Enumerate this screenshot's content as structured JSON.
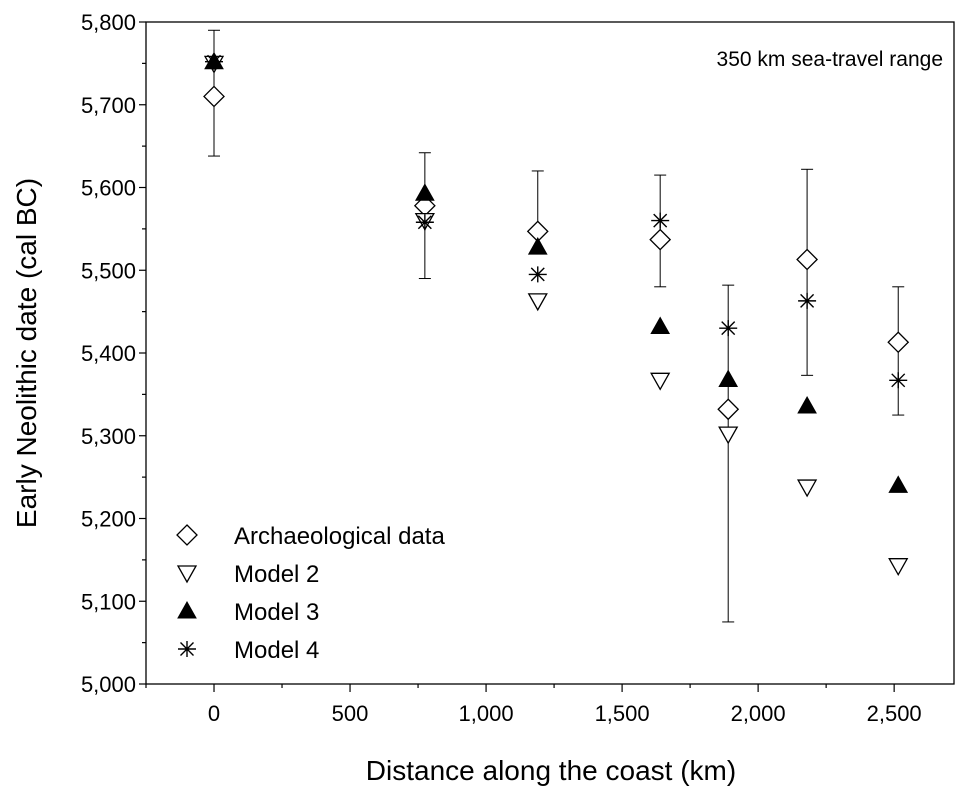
{
  "chart_data": {
    "type": "scatter",
    "title": "",
    "annotation": "350 km sea-travel range",
    "xlabel": "Distance along the coast (km)",
    "ylabel": "Early Neolithic date (cal BC)",
    "xlim": [
      -250,
      2720
    ],
    "ylim": [
      5000,
      5800
    ],
    "xticks": [
      0,
      500,
      1000,
      1500,
      2000,
      2500
    ],
    "xtick_labels": [
      "0",
      "500",
      "1,000",
      "1,500",
      "2,000",
      "2,500"
    ],
    "yticks": [
      5000,
      5100,
      5200,
      5300,
      5400,
      5500,
      5600,
      5700,
      5800
    ],
    "ytick_labels": [
      "5,000",
      "5,100",
      "5,200",
      "5,300",
      "5,400",
      "5,500",
      "5,600",
      "5,700",
      "5,800"
    ],
    "grid": false,
    "legend_position": "bottom-left",
    "series": [
      {
        "name": "Archaeological data",
        "marker": "diamond-open",
        "x": [
          0,
          775,
          1190,
          1640,
          1890,
          2180,
          2515
        ],
        "y": [
          5710,
          5578,
          5547,
          5537,
          5332,
          5513,
          5413
        ],
        "err_low": [
          5638,
          5490,
          null,
          5480,
          5075,
          5373,
          5325
        ],
        "err_high": [
          5790,
          5642,
          5620,
          5615,
          5482,
          5622,
          5480
        ]
      },
      {
        "name": "Model 2",
        "marker": "triangle-down-open",
        "x": [
          0,
          775,
          1190,
          1640,
          1890,
          2180,
          2515
        ],
        "y": [
          5750,
          5560,
          5463,
          5367,
          5302,
          5238,
          5143
        ]
      },
      {
        "name": "Model 3",
        "marker": "triangle-up-filled",
        "x": [
          0,
          775,
          1190,
          1640,
          1890,
          2180,
          2515
        ],
        "y": [
          5752,
          5593,
          5528,
          5432,
          5368,
          5336,
          5240
        ]
      },
      {
        "name": "Model 4",
        "marker": "asterisk",
        "x": [
          0,
          775,
          1190,
          1640,
          1890,
          2180,
          2515
        ],
        "y": [
          5752,
          5558,
          5495,
          5560,
          5430,
          5463,
          5367
        ]
      }
    ]
  }
}
